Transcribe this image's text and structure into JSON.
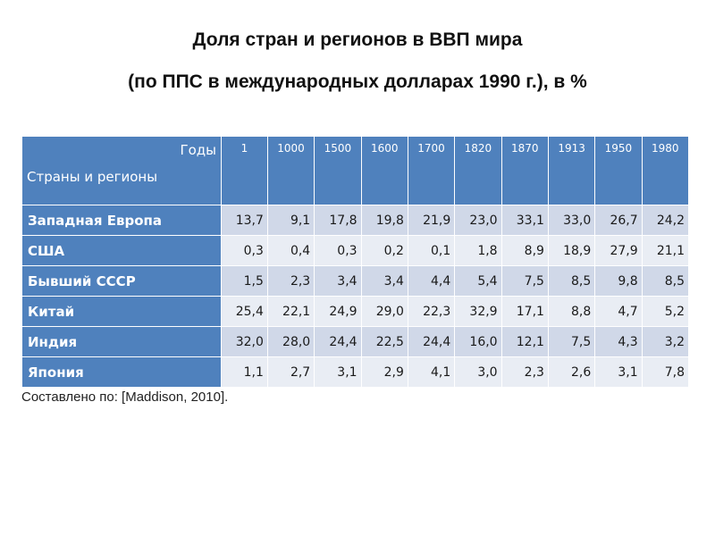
{
  "title_line1": "Доля стран и регионов в ВВП мира",
  "title_line2": "(по ППС в международных долларах 1990 г.), в %",
  "table": {
    "corner_years": "Годы",
    "corner_regions": "Страны и регионы",
    "years": [
      "1",
      "1000",
      "1500",
      "1600",
      "1700",
      "1820",
      "1870",
      "1913",
      "1950",
      "1980"
    ],
    "rows": [
      {
        "region": "Западная Европа",
        "values": [
          "13,7",
          "9,1",
          "17,8",
          "19,8",
          "21,9",
          "23,0",
          "33,1",
          "33,0",
          "26,7",
          "24,2"
        ]
      },
      {
        "region": "США",
        "values": [
          "0,3",
          "0,4",
          "0,3",
          "0,2",
          "0,1",
          "1,8",
          "8,9",
          "18,9",
          "27,9",
          "21,1"
        ]
      },
      {
        "region": "Бывший СССР",
        "values": [
          "1,5",
          "2,3",
          "3,4",
          "3,4",
          "4,4",
          "5,4",
          "7,5",
          "8,5",
          "9,8",
          "8,5"
        ]
      },
      {
        "region": "Китай",
        "values": [
          "25,4",
          "22,1",
          "24,9",
          "29,0",
          "22,3",
          "32,9",
          "17,1",
          "8,8",
          "4,7",
          "5,2"
        ]
      },
      {
        "region": "Индия",
        "values": [
          "32,0",
          "28,0",
          "24,4",
          "22,5",
          "24,4",
          "16,0",
          "12,1",
          "7,5",
          "4,3",
          "3,2"
        ]
      },
      {
        "region": "Япония",
        "values": [
          "1,1",
          "2,7",
          "3,1",
          "2,9",
          "4,1",
          "3,0",
          "2,3",
          "2,6",
          "3,1",
          "7,8"
        ]
      }
    ]
  },
  "source_note": "Составлено по: [Maddison, 2010].",
  "colors": {
    "header_bg": "#4f81bd",
    "row_odd_bg": "#d0d8e8",
    "row_even_bg": "#e9edf4"
  }
}
